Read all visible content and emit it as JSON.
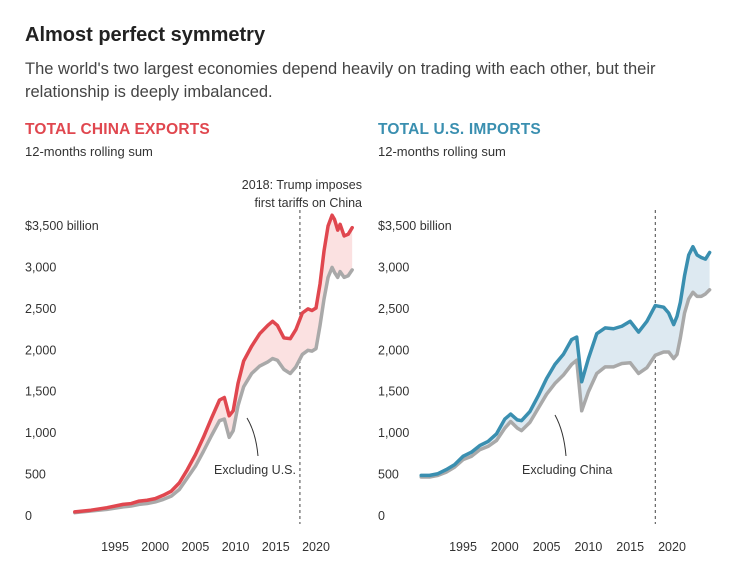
{
  "title": "Almost perfect symmetry",
  "subtitle": "The world's two largest economies depend heavily on trading with each other, but their relationship is deeply imbalanced.",
  "chart_data": [
    {
      "type": "area",
      "title": "TOTAL CHINA EXPORTS",
      "subtitle": "12-months rolling sum",
      "color": "#e0474f",
      "fill_color": "#fbe1e1",
      "secondary_color": "#a9a9a9",
      "x_ticks": [
        1995,
        2000,
        2005,
        2010,
        2015,
        2020
      ],
      "y_tick_labels": [
        "0",
        "500",
        "1,000",
        "1,500",
        "2,000",
        "2,500",
        "3,000",
        "$3,500 billion"
      ],
      "y_ticks": [
        0,
        500,
        1000,
        1500,
        2000,
        2500,
        3000,
        3500
      ],
      "ylim": [
        0,
        3500
      ],
      "xlim": [
        1989,
        2025
      ],
      "grid": false,
      "event_line": {
        "x": 2018,
        "label": [
          "2018: Trump imposes",
          "first tariffs on China"
        ]
      },
      "annotation": "Excluding  U.S.",
      "series": [
        {
          "name": "",
          "x": [
            1990,
            1992,
            1994,
            1996,
            1997,
            1998,
            1999,
            2000,
            2001,
            2002,
            2003,
            2004,
            2005,
            2006,
            2007,
            2008,
            2008.6,
            2009.2,
            2009.7,
            2010.3,
            2011,
            2012,
            2013,
            2014,
            2014.6,
            2015.2,
            2016,
            2016.8,
            2017.5,
            2018.3,
            2019,
            2019.5,
            2020,
            2020.5,
            2021,
            2021.5,
            2022,
            2022.3,
            2022.7,
            2023,
            2023.5,
            2024,
            2024.5
          ],
          "y": [
            50,
            70,
            100,
            140,
            150,
            180,
            190,
            210,
            250,
            300,
            400,
            560,
            740,
            950,
            1180,
            1400,
            1430,
            1210,
            1270,
            1600,
            1870,
            2050,
            2200,
            2300,
            2350,
            2300,
            2150,
            2140,
            2250,
            2450,
            2500,
            2480,
            2510,
            2800,
            3200,
            3500,
            3630,
            3580,
            3450,
            3520,
            3380,
            3400,
            3480
          ]
        },
        {
          "name": "Excluding  U.S.",
          "x": [
            1990,
            1992,
            1994,
            1996,
            1997,
            1998,
            1999,
            2000,
            2001,
            2002,
            2003,
            2004,
            2005,
            2006,
            2007,
            2008,
            2008.6,
            2009.2,
            2009.7,
            2010.3,
            2011,
            2012,
            2013,
            2014,
            2014.6,
            2015.2,
            2016,
            2016.8,
            2017.5,
            2018.3,
            2019,
            2019.5,
            2020,
            2020.5,
            2021,
            2021.5,
            2022,
            2022.3,
            2022.7,
            2023,
            2023.5,
            2024,
            2024.5
          ],
          "y": [
            40,
            60,
            80,
            110,
            120,
            140,
            150,
            170,
            200,
            240,
            320,
            460,
            600,
            780,
            970,
            1150,
            1170,
            950,
            1030,
            1330,
            1560,
            1720,
            1810,
            1860,
            1900,
            1880,
            1770,
            1720,
            1800,
            1950,
            2000,
            1990,
            2020,
            2300,
            2620,
            2880,
            3000,
            2940,
            2880,
            2950,
            2880,
            2900,
            2970
          ]
        }
      ]
    },
    {
      "type": "area",
      "title": "TOTAL U.S. IMPORTS",
      "subtitle": "12-months rolling sum",
      "color": "#3a8fb0",
      "fill_color": "#dde9f1",
      "secondary_color": "#a9a9a9",
      "x_ticks": [
        1995,
        2000,
        2005,
        2010,
        2015,
        2020
      ],
      "y_tick_labels": [
        "0",
        "500",
        "1,000",
        "1,500",
        "2,000",
        "2,500",
        "3,000",
        "$3,500 billion"
      ],
      "y_ticks": [
        0,
        500,
        1000,
        1500,
        2000,
        2500,
        3000,
        3500
      ],
      "ylim": [
        0,
        3500
      ],
      "xlim": [
        1989,
        2025
      ],
      "grid": false,
      "event_line": {
        "x": 2018
      },
      "annotation": "Excluding China",
      "series": [
        {
          "name": "",
          "x": [
            1990,
            1991,
            1992,
            1993,
            1994,
            1995,
            1996,
            1997,
            1998,
            1999,
            2000,
            2000.7,
            2001.5,
            2002,
            2003,
            2004,
            2005,
            2006,
            2007,
            2008,
            2008.6,
            2009.2,
            2010,
            2011,
            2012,
            2013,
            2014,
            2015,
            2016,
            2017,
            2018,
            2019,
            2019.6,
            2020.2,
            2020.6,
            2021,
            2021.5,
            2022,
            2022.5,
            2023,
            2023.5,
            2024,
            2024.5
          ],
          "y": [
            490,
            490,
            510,
            560,
            620,
            720,
            770,
            850,
            900,
            990,
            1170,
            1230,
            1160,
            1150,
            1260,
            1450,
            1660,
            1830,
            1950,
            2130,
            2160,
            1620,
            1900,
            2200,
            2270,
            2260,
            2290,
            2350,
            2220,
            2350,
            2540,
            2520,
            2450,
            2310,
            2410,
            2580,
            2900,
            3150,
            3250,
            3150,
            3120,
            3100,
            3180
          ]
        },
        {
          "name": "Excluding China",
          "x": [
            1990,
            1991,
            1992,
            1993,
            1994,
            1995,
            1996,
            1997,
            1998,
            1999,
            2000,
            2000.7,
            2001.5,
            2002,
            2003,
            2004,
            2005,
            2006,
            2007,
            2008,
            2008.6,
            2009.2,
            2010,
            2011,
            2012,
            2013,
            2014,
            2015,
            2016,
            2017,
            2018,
            2019,
            2019.6,
            2020.2,
            2020.6,
            2021,
            2021.5,
            2022,
            2022.5,
            2023,
            2023.5,
            2024,
            2024.5
          ],
          "y": [
            470,
            470,
            490,
            530,
            590,
            680,
            720,
            800,
            840,
            910,
            1060,
            1140,
            1060,
            1030,
            1130,
            1300,
            1470,
            1600,
            1700,
            1830,
            1880,
            1270,
            1500,
            1720,
            1800,
            1800,
            1840,
            1850,
            1720,
            1790,
            1940,
            1980,
            1980,
            1900,
            1950,
            2150,
            2450,
            2620,
            2700,
            2650,
            2650,
            2680,
            2730
          ]
        }
      ]
    }
  ]
}
